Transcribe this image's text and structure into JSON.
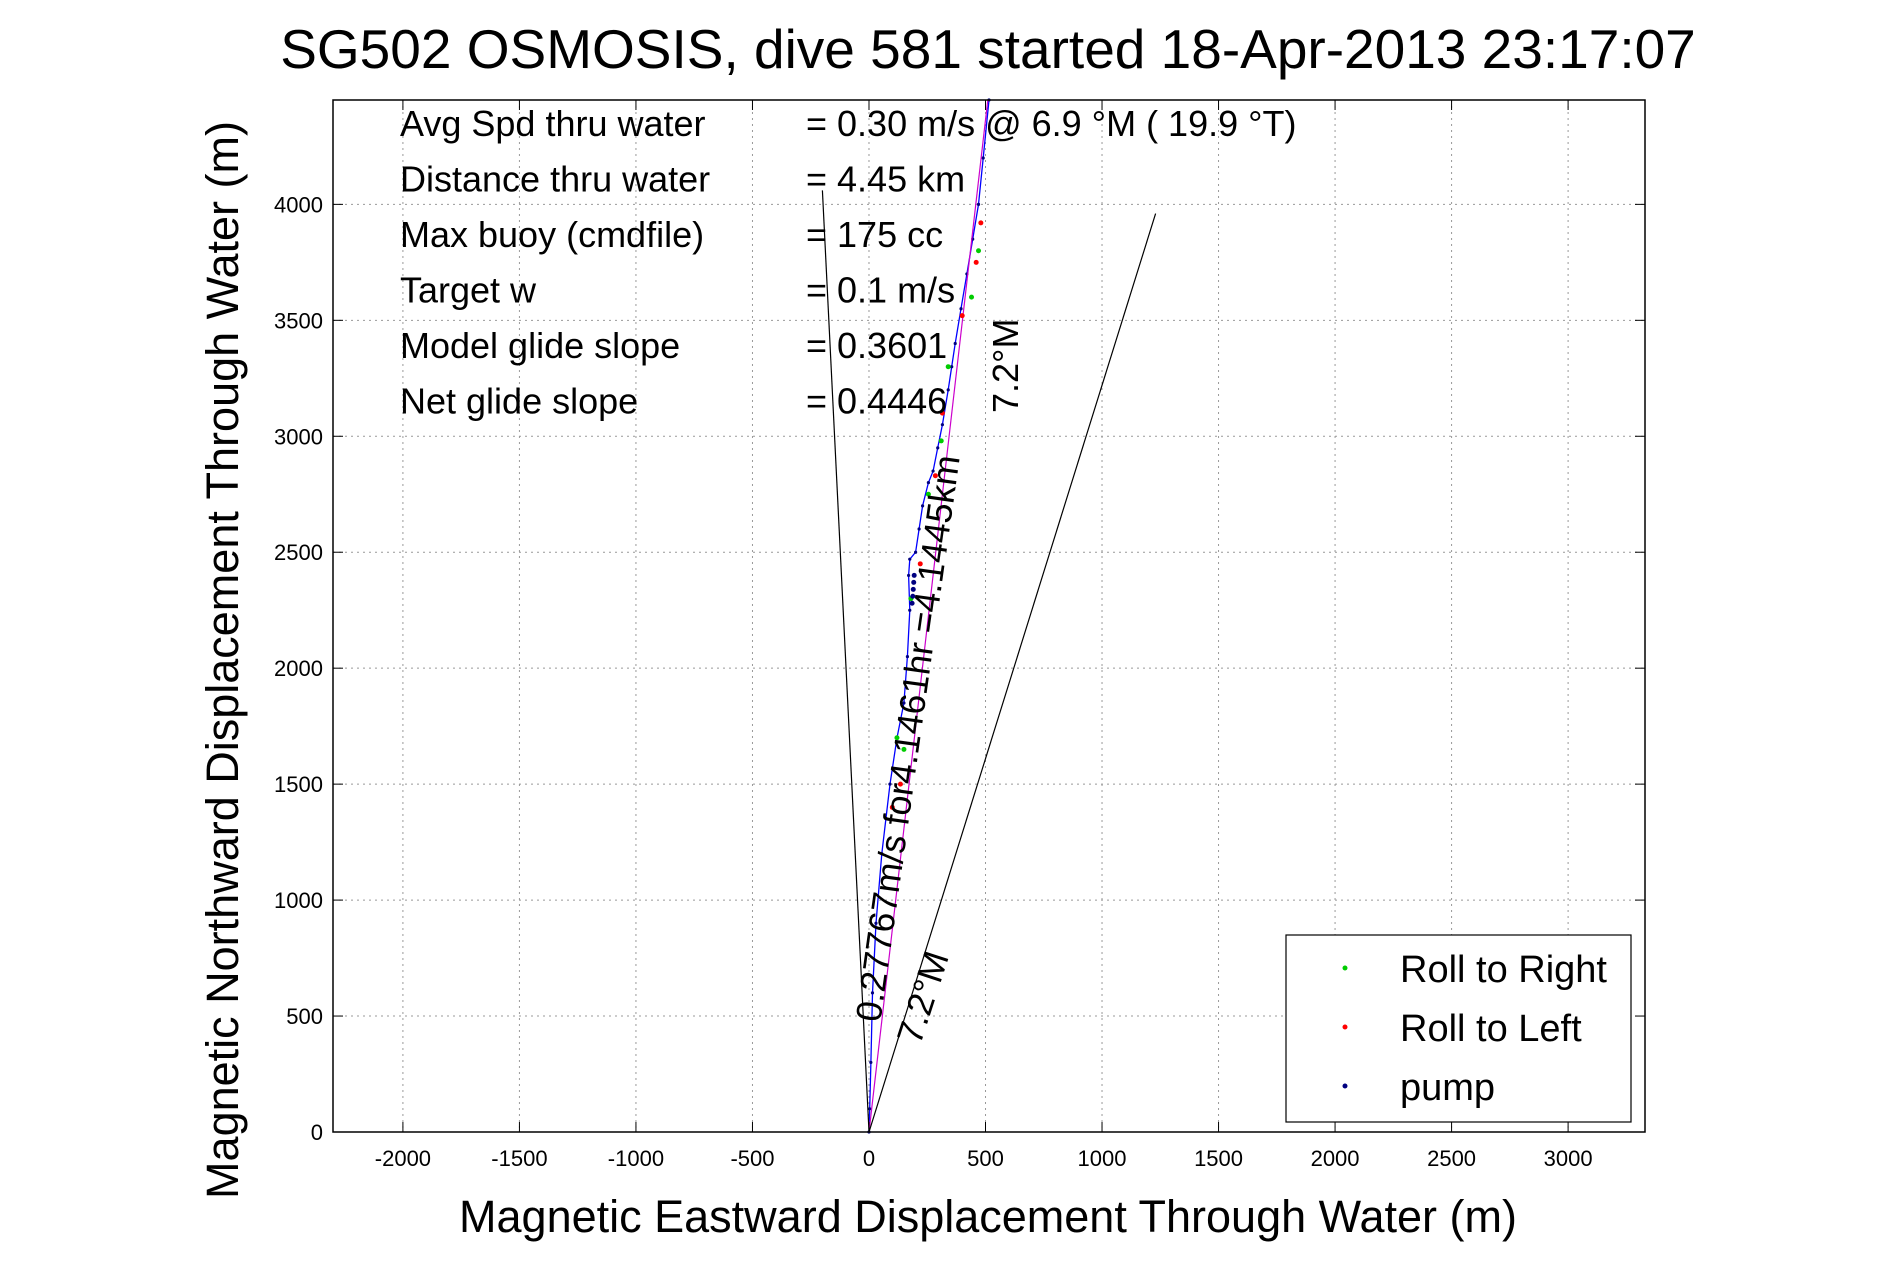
{
  "chart_data": {
    "type": "line",
    "title": "SG502 OSMOSIS, dive 581 started 18-Apr-2013 23:17:07",
    "xlabel": "Magnetic Eastward Displacement Through Water (m)",
    "ylabel": "Magnetic Northward Displacement Through Water (m)",
    "xlim": [
      -2300,
      3330
    ],
    "ylim": [
      0,
      4450
    ],
    "xticks": [
      "-2000",
      "-1500",
      "-1000",
      "-500",
      "0",
      "500",
      "1000",
      "1500",
      "2000",
      "2500",
      "3000"
    ],
    "yticks": [
      "0",
      "500",
      "1000",
      "1500",
      "2000",
      "2500",
      "3000",
      "3500",
      "4000"
    ],
    "grid": true,
    "stats": [
      {
        "label": "Avg Spd thru water",
        "value": "=  0.30 m/s @   6.9 °M ( 19.9 °T)"
      },
      {
        "label": "Distance thru water",
        "value": "=  4.45 km"
      },
      {
        "label": "Max buoy (cmdfile)",
        "value": "= 175 cc"
      },
      {
        "label": "Target w",
        "value": "= 0.1 m/s"
      },
      {
        "label": "Model glide slope",
        "value": "= 0.3601"
      },
      {
        "label": "Net glide slope",
        "value": "= 0.4446"
      }
    ],
    "annotations": {
      "course_line_label": "0.27767m/s for4.1461hr =4.1445km",
      "heading_label_top": "7.2°M",
      "heading_label_bottom": "7.2°M"
    },
    "legend": {
      "position": "bottom-right",
      "entries": [
        {
          "name": "Roll to Right",
          "color": "#00cc00"
        },
        {
          "name": "Roll to Left",
          "color": "#ff0000"
        },
        {
          "name": "pump",
          "color": "#000080"
        }
      ]
    },
    "series": [
      {
        "role": "track",
        "color": "#0000ff",
        "x": [
          0,
          3,
          8,
          15,
          30,
          55,
          90,
          120,
          150,
          165,
          175,
          170,
          175,
          200,
          215,
          230,
          255,
          275,
          295,
          315,
          340,
          355,
          370,
          395,
          420,
          445,
          470,
          490,
          515
        ],
        "y": [
          0,
          100,
          300,
          600,
          900,
          1200,
          1500,
          1700,
          1850,
          2050,
          2250,
          2400,
          2470,
          2500,
          2600,
          2700,
          2800,
          2850,
          2950,
          3050,
          3200,
          3300,
          3400,
          3550,
          3700,
          3850,
          4000,
          4200,
          4450
        ]
      },
      {
        "role": "course-line",
        "color": "#cc00cc",
        "x": [
          0,
          510
        ],
        "y": [
          0,
          4450
        ]
      },
      {
        "role": "heading-cone-left",
        "color": "#000000",
        "x": [
          0,
          -200
        ],
        "y": [
          0,
          4060
        ]
      },
      {
        "role": "heading-cone-right",
        "color": "#000000",
        "x": [
          0,
          1230
        ],
        "y": [
          0,
          3960
        ]
      },
      {
        "role": "roll-right-points",
        "color": "#00cc00",
        "x": [
          120,
          150,
          180,
          255,
          310,
          340,
          440,
          470
        ],
        "y": [
          1700,
          1650,
          2300,
          2750,
          2980,
          3300,
          3600,
          3800
        ]
      },
      {
        "role": "roll-left-points",
        "color": "#ff0000",
        "x": [
          100,
          135,
          220,
          285,
          315,
          400,
          460,
          480
        ],
        "y": [
          1400,
          1500,
          2450,
          2830,
          3100,
          3520,
          3750,
          3920
        ]
      },
      {
        "role": "pump-points",
        "color": "#000080",
        "x": [
          185,
          188,
          190,
          192,
          194
        ],
        "y": [
          2280,
          2310,
          2340,
          2370,
          2400
        ]
      }
    ]
  }
}
